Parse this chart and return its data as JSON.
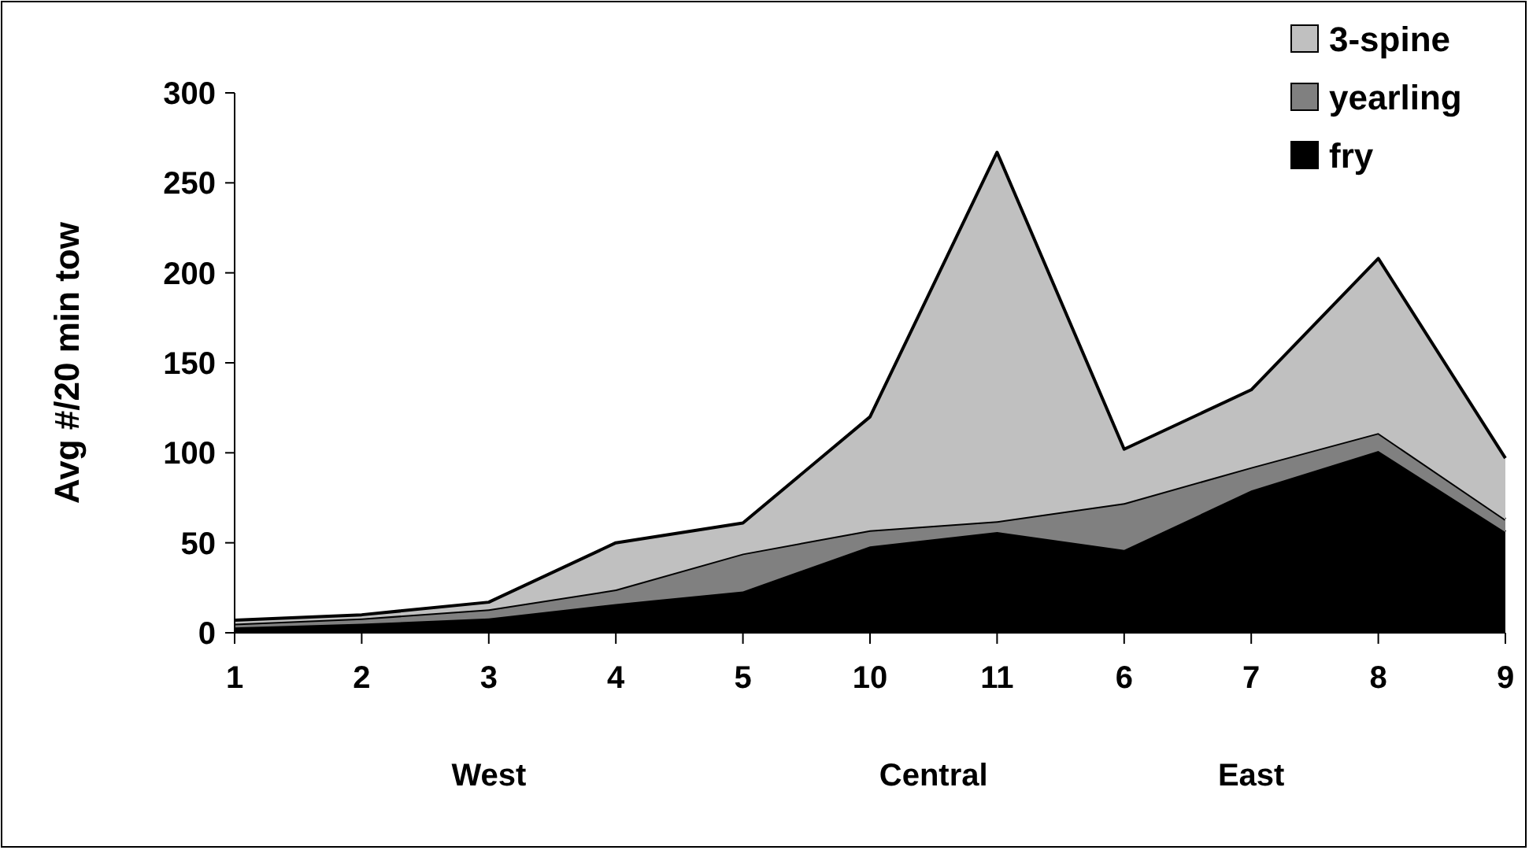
{
  "chart_data": {
    "type": "area",
    "stacked": true,
    "ylabel": "Avg #/20 min tow",
    "categories": [
      "1",
      "2",
      "3",
      "4",
      "5",
      "10",
      "11",
      "6",
      "7",
      "8",
      "9"
    ],
    "series": [
      {
        "name": "fry",
        "color": "#000000",
        "values": [
          3,
          5,
          8,
          16,
          23,
          48,
          56,
          46,
          79,
          101,
          56
        ]
      },
      {
        "name": "yearling",
        "color": "#808080",
        "values": [
          2,
          3,
          5,
          8,
          21,
          9,
          6,
          26,
          13,
          10,
          7
        ]
      },
      {
        "name": "3-spine",
        "color": "#c0c0c0",
        "values": [
          2,
          2,
          4,
          26,
          17,
          63,
          205,
          30,
          43,
          97,
          34
        ]
      }
    ],
    "ylim": [
      0,
      300
    ],
    "yticks": [
      0,
      50,
      100,
      150,
      200,
      250,
      300
    ],
    "grid": false,
    "legend": "top right",
    "annotations": [
      "West",
      "Central",
      "East"
    ]
  }
}
